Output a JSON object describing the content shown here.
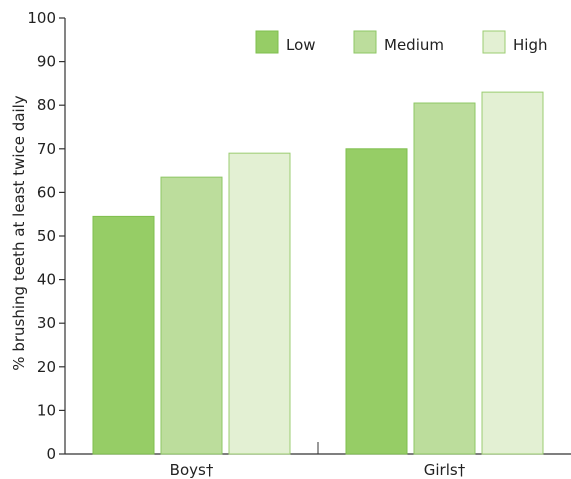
{
  "chart_data": {
    "type": "bar",
    "categories": [
      "Boys†",
      "Girls†"
    ],
    "series": [
      {
        "name": "Low",
        "values": [
          54.5,
          70
        ],
        "fill": "#96cd66",
        "stroke": "#7fbf4e"
      },
      {
        "name": "Medium",
        "values": [
          63.5,
          80.5
        ],
        "fill": "#bcdd9c",
        "stroke": "#8ec765"
      },
      {
        "name": "High",
        "values": [
          69,
          83
        ],
        "fill": "#e3f0d3",
        "stroke": "#9bcc70"
      }
    ],
    "title": "",
    "xlabel": "",
    "ylabel": "% brushing teeth at least twice daily",
    "ylim": [
      0,
      100
    ],
    "yticks": [
      0,
      10,
      20,
      30,
      40,
      50,
      60,
      70,
      80,
      90,
      100
    ],
    "grid": false,
    "legend_position": "top-right"
  }
}
